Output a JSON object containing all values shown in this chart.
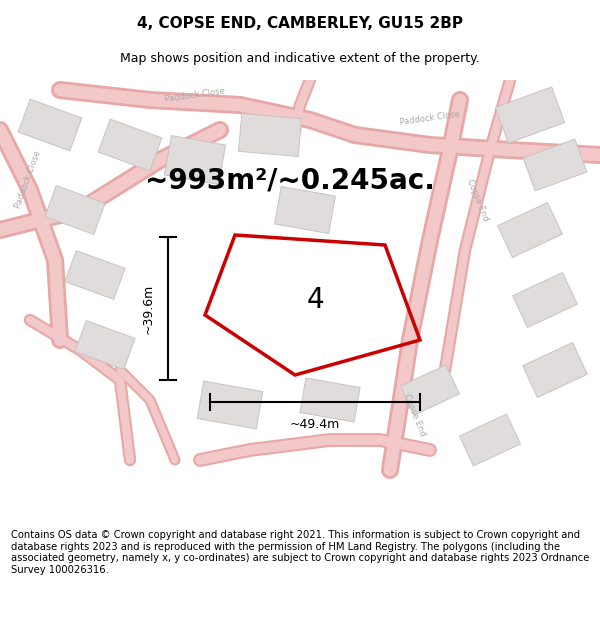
{
  "title": "4, COPSE END, CAMBERLEY, GU15 2BP",
  "subtitle": "Map shows position and indicative extent of the property.",
  "area_text": "~993m²/~0.245ac.",
  "dim_width": "~49.4m",
  "dim_height": "~39.6m",
  "plot_number": "4",
  "footer": "Contains OS data © Crown copyright and database right 2021. This information is subject to Crown copyright and database rights 2023 and is reproduced with the permission of HM Land Registry. The polygons (including the associated geometry, namely x, y co-ordinates) are subject to Crown copyright and database rights 2023 Ordnance Survey 100026316.",
  "bg_color": "#ffffff",
  "map_bg": "#f8f5f5",
  "road_color": "#f2c8c8",
  "road_edge_color": "#e8a8a8",
  "building_fill": "#e0dcdc",
  "building_outline": "#c8c4c4",
  "plot_outline": "#cc0000",
  "dim_color": "#000000",
  "road_label_color": "#aaaaaa",
  "title_fontsize": 11,
  "subtitle_fontsize": 9,
  "area_fontsize": 20,
  "plot_num_fontsize": 20,
  "footer_fontsize": 7.2,
  "road_lw": 8,
  "road_edge_lw": 10
}
